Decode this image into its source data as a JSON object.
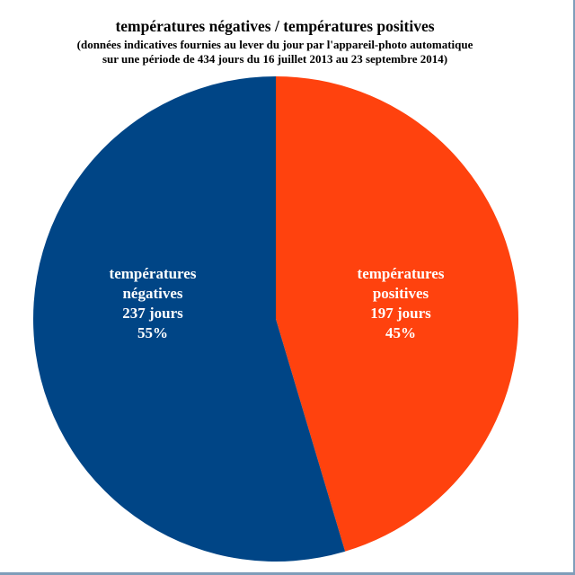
{
  "chart_data": {
    "type": "pie",
    "title": "températures négatives / températures positives",
    "subtitle_lines": [
      "(données indicatives fournies au lever du jour par l'appareil-photo automatique",
      "sur une période de 434 jours du 16 juillet 2013 au 23 septembre 2014)"
    ],
    "slices": [
      {
        "name": "températures positives",
        "value": 197,
        "percent": 45,
        "color": "#ff420e",
        "label_lines": [
          "températures",
          "positives",
          "197 jours",
          "45%"
        ]
      },
      {
        "name": "températures négatives",
        "value": 237,
        "percent": 55,
        "color": "#004586",
        "label_lines": [
          "températures",
          "négatives",
          "237 jours",
          "55%"
        ]
      }
    ],
    "start_angle": "12 o'clock",
    "direction": "clockwise",
    "legend": "none"
  }
}
